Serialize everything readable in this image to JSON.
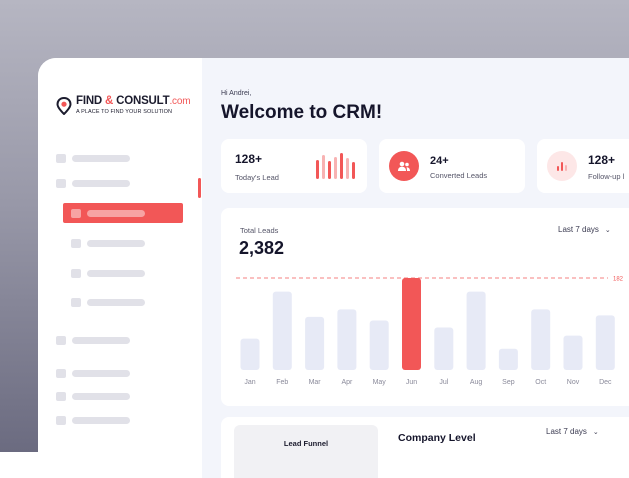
{
  "app": {
    "logo_title_part1": "FIND ",
    "logo_title_amp": "&",
    "logo_title_part2": " CONSULT",
    "logo_title_domain": ".com",
    "logo_tagline": "A PLACE TO FIND YOUR SOLUTION"
  },
  "colors": {
    "accent": "#f25757",
    "bar_default": "#e7eaf6",
    "bar_highlight": "#f25757",
    "text_dark": "#15152b",
    "background": "#f3f5fb"
  },
  "header": {
    "greeting": "Hi Andrei,",
    "title": "Welcome to CRM!"
  },
  "stats": [
    {
      "value": "128+",
      "label": "Today's Lead",
      "icon": "bar-chart-icon"
    },
    {
      "value": "24+",
      "label": "Converted Leads",
      "icon": "users-icon"
    },
    {
      "value": "128+",
      "label": "Follow-up l",
      "icon": "bar-chart-icon"
    }
  ],
  "total_leads": {
    "label": "Total Leads",
    "value": "2,382",
    "range": "Last 7 days"
  },
  "chart_data": {
    "type": "bar",
    "categories": [
      "Jan",
      "Feb",
      "Mar",
      "Apr",
      "May",
      "Jun",
      "Jul",
      "Aug",
      "Sep",
      "Oct",
      "Nov",
      "Dec"
    ],
    "values": [
      62,
      155,
      105,
      120,
      98,
      182,
      84,
      155,
      42,
      120,
      68,
      108
    ],
    "highlight_index": 5,
    "reference_line": {
      "value": 182,
      "label": "182"
    },
    "ylim": [
      0,
      182
    ],
    "grid": false
  },
  "bottom": {
    "funnel_label": "Lead Funnel",
    "company_level": "Company Level",
    "range": "Last 7 days"
  }
}
